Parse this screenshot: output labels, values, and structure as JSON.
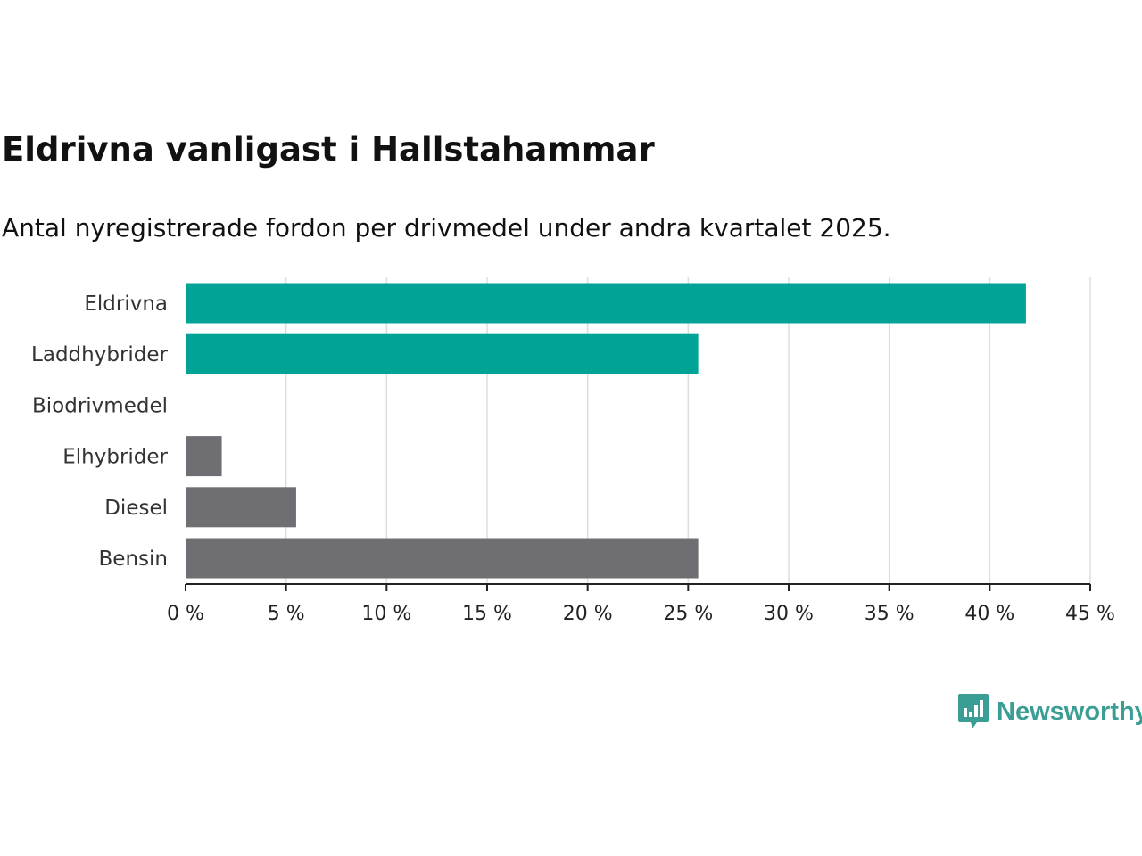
{
  "header": {
    "title": "Eldrivna vanligast i Hallstahammar",
    "subtitle": "Antal nyregistrerade fordon per drivmedel under andra kvartalet 2025."
  },
  "brand": {
    "name": "Newsworthy",
    "icon": "newsworthy-logo-icon",
    "color": "#3b9e94"
  },
  "colors": {
    "highlight": "#00a396",
    "other": "#6f6e73",
    "grid": "#dddddd",
    "axis": "#222222"
  },
  "chart_data": {
    "type": "bar",
    "orientation": "horizontal",
    "categories": [
      "Eldrivna",
      "Laddhybrider",
      "Biodrivmedel",
      "Elhybrider",
      "Diesel",
      "Bensin"
    ],
    "values": [
      41.8,
      25.5,
      0,
      1.8,
      5.5,
      25.5
    ],
    "highlighted": [
      true,
      true,
      false,
      false,
      false,
      false
    ],
    "xlim": [
      0,
      45
    ],
    "ticks": [
      0,
      5,
      10,
      15,
      20,
      25,
      30,
      35,
      40,
      45
    ],
    "tick_labels": [
      "0 %",
      "5 %",
      "10 %",
      "15 %",
      "20 %",
      "25 %",
      "30 %",
      "35 %",
      "40 %",
      "45 %"
    ],
    "grid": true,
    "legend": "none"
  }
}
